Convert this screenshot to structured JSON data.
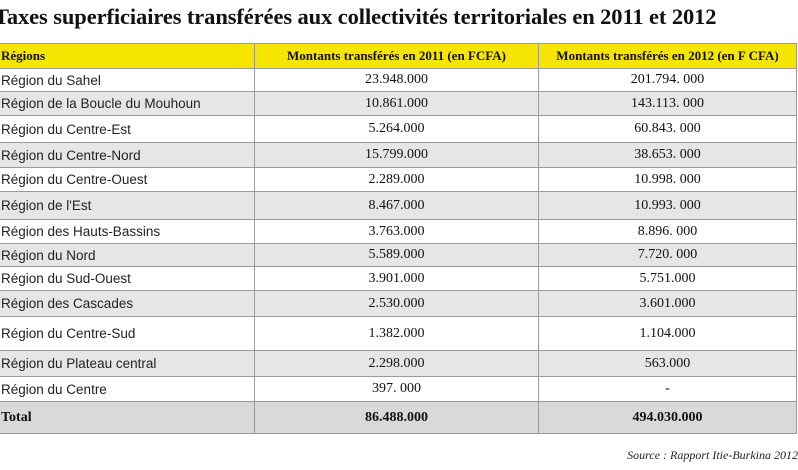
{
  "title": "Taxes superficiaires transférées aux collectivités territoriales en 2011 et 2012",
  "table": {
    "headers": [
      "Régions",
      "Montants transférés en 2011 (en FCFA)",
      "Montants transférés en 2012 (en F CFA)"
    ],
    "rows": [
      [
        "Région du Sahel",
        "23.948.000",
        "201.794. 000"
      ],
      [
        "Région de la Boucle du Mouhoun",
        "10.861.000",
        "143.113. 000"
      ],
      [
        "Région du Centre-Est",
        "5.264.000",
        "60.843. 000"
      ],
      [
        "Région du Centre-Nord",
        "15.799.000",
        "38.653. 000"
      ],
      [
        "Région du Centre-Ouest",
        "2.289.000",
        "10.998. 000"
      ],
      [
        "Région de l'Est",
        "8.467.000",
        "10.993. 000"
      ],
      [
        "Région des Hauts-Bassins",
        "3.763.000",
        "8.896. 000"
      ],
      [
        "Région du Nord",
        "5.589.000",
        "7.720. 000"
      ],
      [
        "Région du Sud-Ouest",
        "3.901.000",
        "5.751.000"
      ],
      [
        "Région des Cascades",
        "2.530.000",
        "3.601.000"
      ],
      [
        "Région du Centre-Sud",
        "1.382.000",
        "1.104.000"
      ],
      [
        "Région du Plateau central",
        "2.298.000",
        "563.000"
      ],
      [
        "Région du Centre",
        "397. 000",
        "-"
      ]
    ],
    "total": [
      "Total",
      "86.488.000",
      "494.030.000"
    ]
  },
  "source": "Source : Rapport Itie-Burkina 2012",
  "colors": {
    "header_bg": "#f5e500",
    "band_bg": "#e6e6e6",
    "total_bg": "#d9d9d9"
  }
}
